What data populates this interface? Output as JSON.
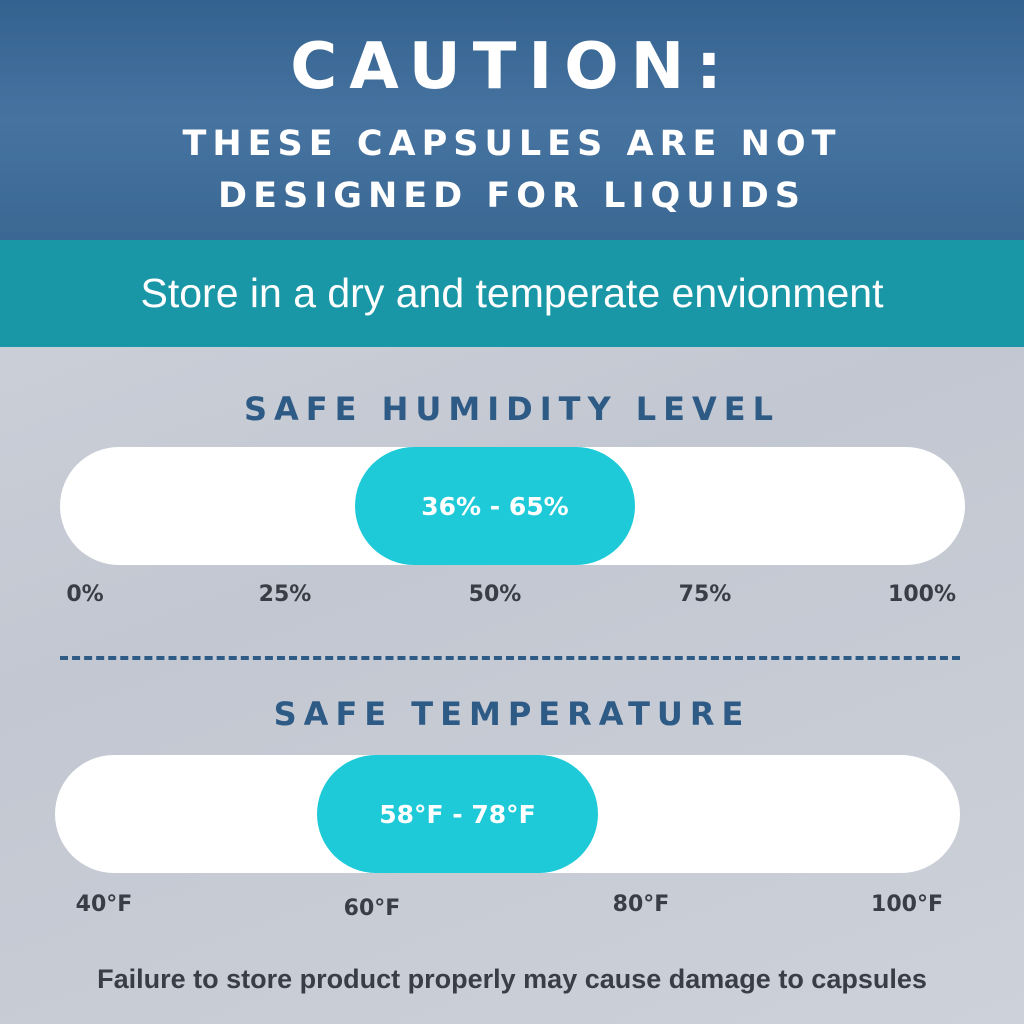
{
  "header": {
    "title": "CAUTION:",
    "subtitle_line1": "THESE CAPSULES ARE NOT",
    "subtitle_line2": "DESIGNED FOR LIQUIDS"
  },
  "banner": "Store in a dry and temperate envionment",
  "humidity": {
    "title": "SAFE HUMIDITY LEVEL",
    "range_label": "36% - 65%",
    "range": [
      36,
      65
    ],
    "scale": [
      0,
      100
    ],
    "ticks": [
      "0%",
      "25%",
      "50%",
      "75%",
      "100%"
    ]
  },
  "temperature": {
    "title": "SAFE TEMPERATURE",
    "range_label": "58°F - 78°F",
    "range": [
      58,
      78
    ],
    "scale": [
      40,
      100
    ],
    "ticks": [
      "40°F",
      "60°F",
      "80°F",
      "100°F"
    ]
  },
  "footer": "Failure to store product properly may cause damage to capsules",
  "colors": {
    "header": "#3d6a96",
    "banner": "#1a97a6",
    "highlight": "#1ecad8",
    "title": "#2e5a86"
  }
}
